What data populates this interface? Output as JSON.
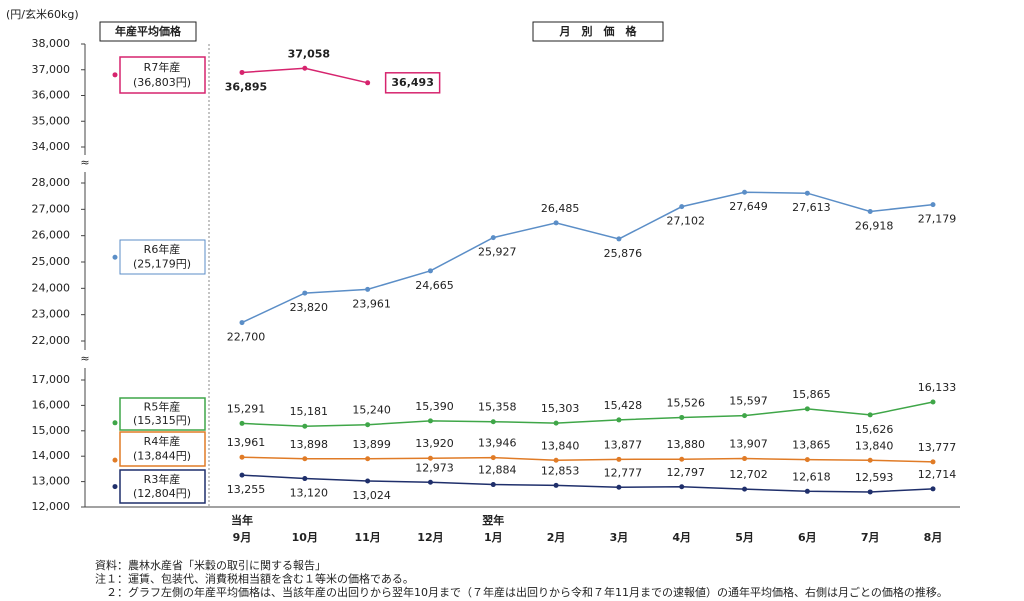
{
  "chart_data": {
    "type": "line",
    "y_unit": "(円/玄米60kg)",
    "panel_titles": [
      "年産平均価格",
      "月　別　価　格"
    ],
    "categories": [
      "9月",
      "10月",
      "11月",
      "12月",
      "1月",
      "2月",
      "3月",
      "4月",
      "5月",
      "6月",
      "7月",
      "8月"
    ],
    "category_groups": [
      {
        "label": "当年",
        "at": 0
      },
      {
        "label": "翌年",
        "at": 4
      }
    ],
    "y_segments": [
      {
        "ylim": [
          34000,
          38000
        ],
        "yticks": [
          {
            "value": 34000,
            "label": "34,000"
          },
          {
            "value": 35000,
            "label": "35,000"
          },
          {
            "value": 36000,
            "label": "36,000"
          },
          {
            "value": 37000,
            "label": "37,000"
          },
          {
            "value": 38000,
            "label": "38,000"
          }
        ]
      },
      {
        "ylim": [
          22000,
          28000
        ],
        "yticks": [
          {
            "value": 22000,
            "label": "22,000"
          },
          {
            "value": 23000,
            "label": "23,000"
          },
          {
            "value": 24000,
            "label": "24,000"
          },
          {
            "value": 25000,
            "label": "25,000"
          },
          {
            "value": 26000,
            "label": "26,000"
          },
          {
            "value": 27000,
            "label": "27,000"
          },
          {
            "value": 28000,
            "label": "28,000"
          }
        ]
      },
      {
        "ylim": [
          12000,
          17000
        ],
        "yticks": [
          {
            "value": 12000,
            "label": "12,000"
          },
          {
            "value": 13000,
            "label": "13,000"
          },
          {
            "value": 14000,
            "label": "14,000"
          },
          {
            "value": 15000,
            "label": "15,000"
          },
          {
            "value": 16000,
            "label": "16,000"
          },
          {
            "value": 17000,
            "label": "17,000"
          }
        ]
      }
    ],
    "series": [
      {
        "name": "R7年産",
        "segment": 0,
        "color": "#d6246e",
        "annual_value": 36803,
        "annual_value_label": "(36,803円)",
        "values": [
          36895,
          37058,
          36493,
          null,
          null,
          null,
          null,
          null,
          null,
          null,
          null,
          null
        ],
        "value_labels": [
          "36,895",
          "37,058",
          "36,493",
          null,
          null,
          null,
          null,
          null,
          null,
          null,
          null,
          null
        ]
      },
      {
        "name": "R6年産",
        "segment": 1,
        "color": "#5b8ec7",
        "annual_value": 25179,
        "annual_value_label": "(25,179円)",
        "values": [
          22700,
          23820,
          23961,
          24665,
          25927,
          26485,
          25876,
          27102,
          27649,
          27613,
          26918,
          27179
        ],
        "value_labels": [
          "22,700",
          "23,820",
          "23,961",
          "24,665",
          "25,927",
          "26,485",
          "25,876",
          "27,102",
          "27,649",
          "27,613",
          "26,918",
          "27,179"
        ]
      },
      {
        "name": "R5年産",
        "segment": 2,
        "color": "#3fa648",
        "annual_value": 15315,
        "annual_value_label": "(15,315円)",
        "values": [
          15291,
          15181,
          15240,
          15390,
          15358,
          15303,
          15428,
          15526,
          15597,
          15865,
          15626,
          16133
        ],
        "value_labels": [
          "15,291",
          "15,181",
          "15,240",
          "15,390",
          "15,358",
          "15,303",
          "15,428",
          "15,526",
          "15,597",
          "15,865",
          "15,626",
          "16,133"
        ]
      },
      {
        "name": "R4年産",
        "segment": 2,
        "color": "#e07b26",
        "annual_value": 13844,
        "annual_value_label": "(13,844円)",
        "values": [
          13961,
          13898,
          13899,
          13920,
          13946,
          13840,
          13877,
          13880,
          13907,
          13865,
          13840,
          13777
        ],
        "value_labels": [
          "13,961",
          "13,898",
          "13,899",
          "13,920",
          "13,946",
          "13,840",
          "13,877",
          "13,880",
          "13,907",
          "13,865",
          "13,840",
          "13,777"
        ]
      },
      {
        "name": "R3年産",
        "segment": 2,
        "color": "#1f2f6b",
        "annual_value": 12804,
        "annual_value_label": "(12,804円)",
        "values": [
          13255,
          13120,
          13024,
          12973,
          12884,
          12853,
          12777,
          12797,
          12702,
          12618,
          12593,
          12714
        ],
        "value_labels": [
          "13,255",
          "13,120",
          "13,024",
          "12,973",
          "12,884",
          "12,853",
          "12,777",
          "12,797",
          "12,702",
          "12,618",
          "12,593",
          "12,714"
        ]
      }
    ],
    "notes": [
      "資料：農林水産省「米穀の取引に関する報告」",
      "注１：運賃、包装代、消費税相当額を含む１等米の価格である。",
      "　２：グラフ左側の年産平均価格は、当該年産の出回りから翌年10月まで（７年産は出回りから令和７年11月までの速報値）の通年平均価格、右側は月ごとの価格の推移。"
    ]
  }
}
